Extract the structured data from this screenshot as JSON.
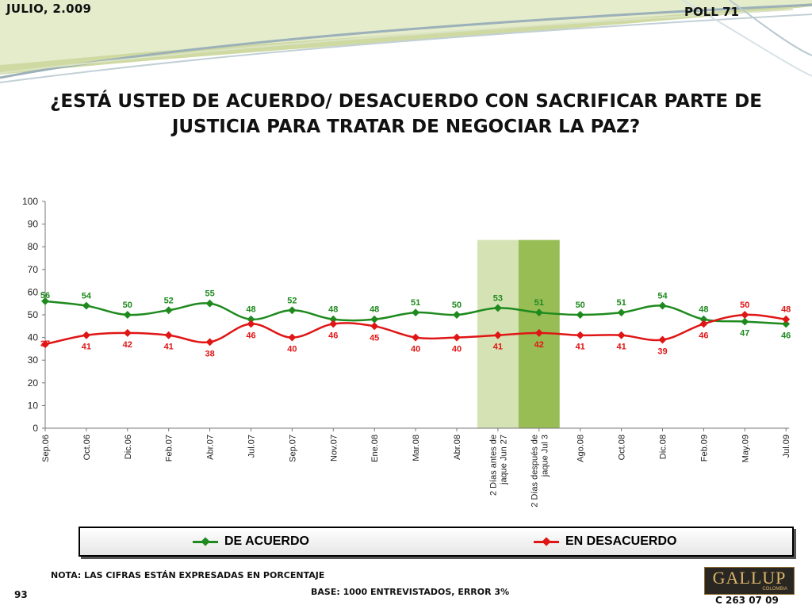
{
  "header": {
    "date": "JULIO, 2.009",
    "poll": "POLL 71"
  },
  "title": "¿ESTÁ USTED DE ACUERDO/ DESACUERDO CON SACRIFICAR PARTE DE JUSTICIA PARA TRATAR DE NEGOCIAR LA PAZ?",
  "footer": {
    "nota": "NOTA: LAS CIFRAS ESTÁN EXPRESADAS EN PORCENTAJE",
    "base": "BASE: 1000 ENTREVISTADOS, ERROR 3%",
    "page": "93",
    "code": "C 263 07 09",
    "logo_text": "GALLUP",
    "logo_sub": "COLOMBIA"
  },
  "colors": {
    "acuerdo": "#1e8a1e",
    "desacuerdo": "#e01515",
    "highlight_light": "#d5e3b4",
    "highlight_dark": "#98bd55"
  },
  "chart_data": {
    "type": "line",
    "title": "",
    "xlabel": "",
    "ylabel": "",
    "ylim": [
      0,
      100
    ],
    "yticks": [
      0,
      10,
      20,
      30,
      40,
      50,
      60,
      70,
      80,
      90,
      100
    ],
    "grid": false,
    "legend_position": "bottom",
    "categories": [
      "Sep.06",
      "Oct.06",
      "Dic.06",
      "Feb.07",
      "Abr.07",
      "Jul.07",
      "Sep.07",
      "Nov.07",
      "Ene.08",
      "Mar.08",
      "Abr.08",
      "2 Días antes de jaque Jun 27",
      "2 Días después de jaque Jul 3",
      "Ago.08",
      "Oct.08",
      "Dic.08",
      "Feb.09",
      "May.09",
      "Jul.09"
    ],
    "category_lines": [
      [
        "Sep.06"
      ],
      [
        "Oct.06"
      ],
      [
        "Dic.06"
      ],
      [
        "Feb.07"
      ],
      [
        "Abr.07"
      ],
      [
        "Jul.07"
      ],
      [
        "Sep.07"
      ],
      [
        "Nov.07"
      ],
      [
        "Ene.08"
      ],
      [
        "Mar.08"
      ],
      [
        "Abr.08"
      ],
      [
        "2 Días antes de",
        "jaque Jun 27"
      ],
      [
        "2 Días después de",
        "jaque Jul 3"
      ],
      [
        "Ago.08"
      ],
      [
        "Oct.08"
      ],
      [
        "Dic.08"
      ],
      [
        "Feb.09"
      ],
      [
        "May.09"
      ],
      [
        "Jul.09"
      ]
    ],
    "highlighted_categories": [
      "2 Días antes de jaque Jun 27",
      "2 Días después de jaque Jul 3"
    ],
    "series": [
      {
        "name": "DE ACUERDO",
        "values": [
          56,
          54,
          50,
          52,
          55,
          48,
          52,
          48,
          48,
          51,
          50,
          53,
          51,
          50,
          51,
          54,
          48,
          47,
          46
        ]
      },
      {
        "name": "EN DESACUERDO",
        "values": [
          37,
          41,
          42,
          41,
          38,
          46,
          40,
          46,
          45,
          40,
          40,
          41,
          42,
          41,
          41,
          39,
          46,
          50,
          48
        ]
      }
    ]
  }
}
